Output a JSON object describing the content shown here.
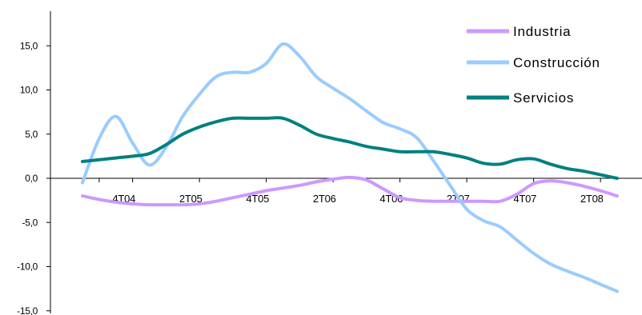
{
  "chart_data": {
    "type": "line",
    "title": "",
    "xlabel": "",
    "ylabel": "",
    "ylim": [
      -15,
      17.5
    ],
    "yticks": [
      15,
      10,
      5,
      0,
      -5,
      -10,
      -15
    ],
    "ytick_labels": [
      "15,0",
      "10,0",
      "5,0",
      "0,0",
      "-5,0",
      "-10,0",
      "-15,0"
    ],
    "xlim": [
      1,
      17
    ],
    "x": [
      1,
      1.5,
      2,
      2.5,
      3,
      3.5,
      4,
      4.5,
      5,
      5.5,
      6,
      6.5,
      7,
      7.5,
      8,
      8.5,
      9,
      9.5,
      10,
      10.5,
      11,
      11.5,
      12,
      12.5,
      13,
      13.5,
      14,
      14.5,
      15,
      15.5,
      16,
      16.5,
      17
    ],
    "xticks": [
      {
        "x": 2,
        "label": "4T04"
      },
      {
        "x": 4,
        "label": "2T05"
      },
      {
        "x": 6,
        "label": "4T05"
      },
      {
        "x": 8,
        "label": "2T06"
      },
      {
        "x": 10,
        "label": "4T06"
      },
      {
        "x": 12,
        "label": "2T07"
      },
      {
        "x": 14,
        "label": "4T07"
      },
      {
        "x": 16,
        "label": "2T08"
      }
    ],
    "grid": false,
    "legend_position": "top-right",
    "series": [
      {
        "name": "Industria",
        "color": "#cc99ff",
        "values": [
          -2.0,
          -2.4,
          -2.7,
          -2.9,
          -3.0,
          -3.0,
          -3.0,
          -2.9,
          -2.6,
          -2.2,
          -1.8,
          -1.4,
          -1.1,
          -0.8,
          -0.4,
          -0.1,
          0.1,
          -0.2,
          -1.2,
          -2.2,
          -2.5,
          -2.6,
          -2.6,
          -2.6,
          -2.6,
          -2.6,
          -1.8,
          -0.6,
          -0.3,
          -0.5,
          -0.9,
          -1.4,
          -2.0
        ]
      },
      {
        "name": "Construcción",
        "color": "#99ccff",
        "values": [
          -0.5,
          4.5,
          7.0,
          4.0,
          1.5,
          3.5,
          7.0,
          9.5,
          11.5,
          12.0,
          12.0,
          13.0,
          15.2,
          13.8,
          11.5,
          10.2,
          9.0,
          7.6,
          6.3,
          5.6,
          4.6,
          2.0,
          -0.8,
          -3.5,
          -4.8,
          -5.5,
          -7.0,
          -8.5,
          -9.7,
          -10.5,
          -11.2,
          -12.0,
          -12.8
        ]
      },
      {
        "name": "Servicios",
        "color": "#008080",
        "values": [
          1.9,
          2.1,
          2.3,
          2.5,
          2.8,
          3.8,
          5.0,
          5.8,
          6.4,
          6.8,
          6.8,
          6.8,
          6.8,
          6.0,
          5.0,
          4.5,
          4.1,
          3.6,
          3.3,
          3.0,
          3.0,
          3.0,
          2.7,
          2.3,
          1.7,
          1.6,
          2.1,
          2.2,
          1.6,
          1.1,
          0.8,
          0.4,
          0.0
        ]
      }
    ]
  }
}
